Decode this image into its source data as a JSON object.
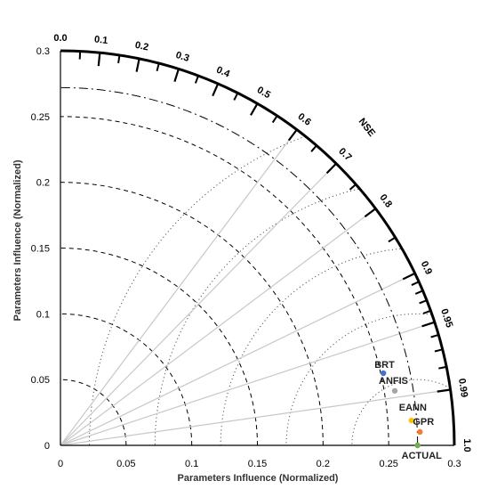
{
  "chart_data": {
    "type": "scatter",
    "subtype": "taylor-diagram",
    "title": "",
    "xlabel": "Parameters Influence (Normalized)",
    "ylabel": "Parameters Influence (Normalized)",
    "arc_label": "NSE",
    "std_range": [
      0,
      0.3
    ],
    "std_ticks": [
      "0",
      "0.05",
      "0.1",
      "0.15",
      "0.2",
      "0.25",
      "0.3"
    ],
    "corr_ticks": [
      {
        "value": 0.0,
        "label": "0.0"
      },
      {
        "value": 0.1,
        "label": "0.1"
      },
      {
        "value": 0.2,
        "label": "0.2"
      },
      {
        "value": 0.3,
        "label": "0.3"
      },
      {
        "value": 0.4,
        "label": "0.4"
      },
      {
        "value": 0.5,
        "label": "0.5"
      },
      {
        "value": 0.6,
        "label": "0.6"
      },
      {
        "value": 0.7,
        "label": "0.7"
      },
      {
        "value": 0.8,
        "label": "0.8"
      },
      {
        "value": 0.9,
        "label": "0.9"
      },
      {
        "value": 0.95,
        "label": "0.95"
      },
      {
        "value": 0.99,
        "label": "0.99"
      },
      {
        "value": 1.0,
        "label": "1.0"
      }
    ],
    "reference_std": 0.272,
    "points": [
      {
        "name": "BRT",
        "std": 0.252,
        "corr": 0.976,
        "color": "#4472c4"
      },
      {
        "name": "ANFIS",
        "std": 0.258,
        "corr": 0.987,
        "color": "#a5a5a5"
      },
      {
        "name": "EANN",
        "std": 0.268,
        "corr": 0.9975,
        "color": "#ffc000"
      },
      {
        "name": "GPR",
        "std": 0.274,
        "corr": 0.9993,
        "color": "#ed7d31"
      },
      {
        "name": "ACTUAL",
        "std": 0.272,
        "corr": 1.0,
        "color": "#70ad47"
      }
    ]
  }
}
